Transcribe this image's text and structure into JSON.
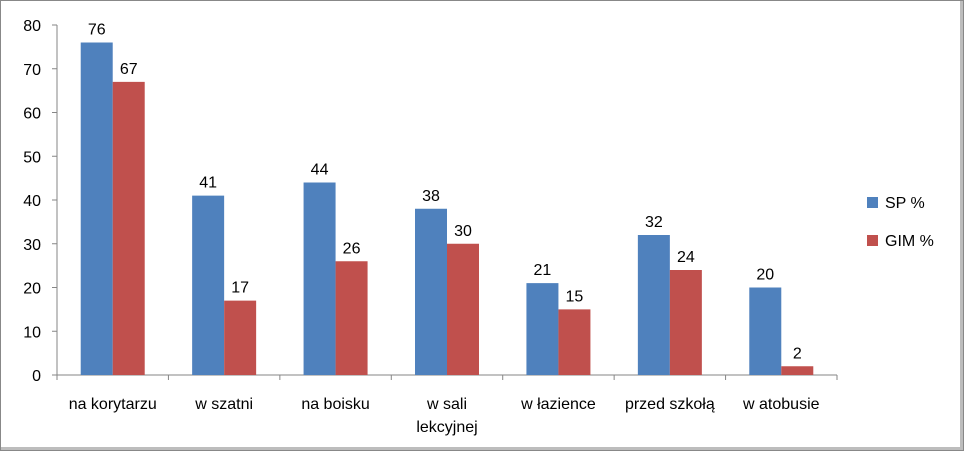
{
  "chart_data": {
    "type": "bar",
    "categories": [
      [
        "na korytarzu"
      ],
      [
        "w szatni"
      ],
      [
        "na boisku"
      ],
      [
        "w sali",
        "lekcyjnej"
      ],
      [
        "w łazience"
      ],
      [
        "przed szkołą"
      ],
      [
        "w atobusie"
      ]
    ],
    "series": [
      {
        "name": "SP %",
        "color": "#4f81bd",
        "values": [
          76,
          41,
          44,
          38,
          21,
          32,
          20
        ]
      },
      {
        "name": "GIM %",
        "color": "#c0504d",
        "values": [
          67,
          17,
          26,
          30,
          15,
          24,
          2
        ]
      }
    ],
    "ylim": [
      0,
      80
    ],
    "yticks": [
      0,
      10,
      20,
      30,
      40,
      50,
      60,
      70,
      80
    ],
    "legend": "right",
    "grid": false,
    "data_labels": true
  }
}
